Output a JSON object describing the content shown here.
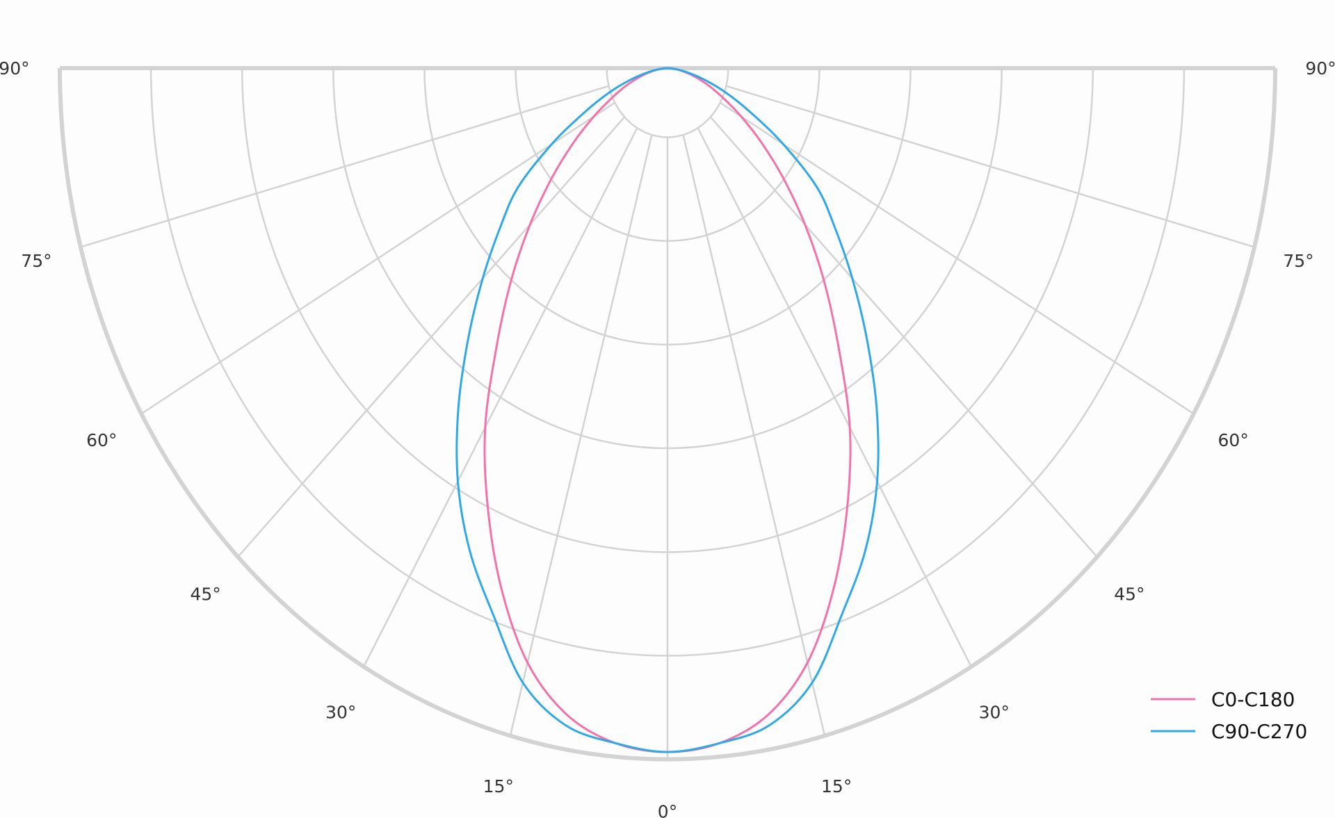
{
  "chart_data": {
    "type": "line",
    "subtype": "polar-half (luminous intensity distribution, 0° at bottom, mirrored left/right)",
    "title": "",
    "angle_ticks_deg": [
      0,
      15,
      30,
      45,
      60,
      75,
      90
    ],
    "angle_tick_labels": [
      "0°",
      "15°",
      "30°",
      "45°",
      "60°",
      "75°",
      "90°"
    ],
    "radial_rings_relative": [
      0.1,
      0.25,
      0.4,
      0.55,
      0.7,
      0.85,
      1.0
    ],
    "radial_tick_labels_shown": false,
    "grid": true,
    "legend_position": "bottom-right",
    "angles_deg": [
      0,
      5,
      10,
      15,
      20,
      25,
      30,
      35,
      40,
      45,
      50,
      55,
      60,
      65,
      70,
      75,
      80,
      85,
      90
    ],
    "series": [
      {
        "name": "C0-C180",
        "color": "#f472a8",
        "values": [
          0.989,
          0.98,
          0.95,
          0.89,
          0.8,
          0.7,
          0.6,
          0.49,
          0.4,
          0.32,
          0.25,
          0.19,
          0.14,
          0.1,
          0.07,
          0.045,
          0.025,
          0.01,
          0
        ]
      },
      {
        "name": "C90-C270",
        "color": "#2fa8e8",
        "values": [
          0.989,
          0.98,
          0.965,
          0.92,
          0.84,
          0.77,
          0.69,
          0.6,
          0.51,
          0.43,
          0.36,
          0.3,
          0.22,
          0.15,
          0.1,
          0.06,
          0.03,
          0.01,
          0
        ]
      }
    ],
    "grid_color": "#d3d3d3"
  }
}
